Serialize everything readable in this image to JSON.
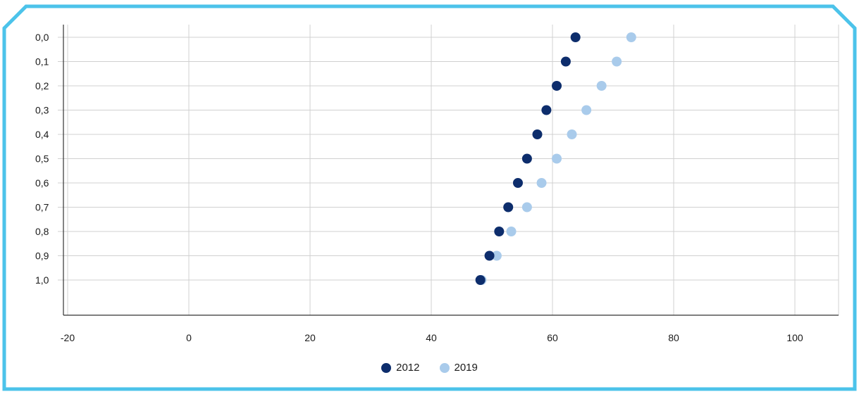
{
  "chart_data": {
    "type": "scatter",
    "orientation": "horizontal-dot",
    "categories": [
      "0,0",
      "0,1",
      "0,2",
      "0,3",
      "0,4",
      "0,5",
      "0,6",
      "0,7",
      "0,8",
      "0,9",
      "1,0"
    ],
    "series": [
      {
        "name": "2012",
        "color": "#0d2d6c",
        "values": [
          63.8,
          62.2,
          60.7,
          59.0,
          57.5,
          55.8,
          54.3,
          52.7,
          51.2,
          49.6,
          48.1
        ]
      },
      {
        "name": "2019",
        "color": "#a9cbeb",
        "values": [
          73.0,
          70.6,
          68.1,
          65.6,
          63.2,
          60.7,
          58.2,
          55.8,
          53.2,
          50.8,
          48.3
        ]
      }
    ],
    "xlim": [
      -20,
      107
    ],
    "x_ticks": [
      "-20",
      "0",
      "20",
      "40",
      "60",
      "80",
      "100"
    ],
    "x_tick_values": [
      -20,
      0,
      20,
      40,
      60,
      80,
      100
    ],
    "grid": true,
    "legend_position": "bottom-center"
  },
  "frame_color": "#4cc3ea"
}
